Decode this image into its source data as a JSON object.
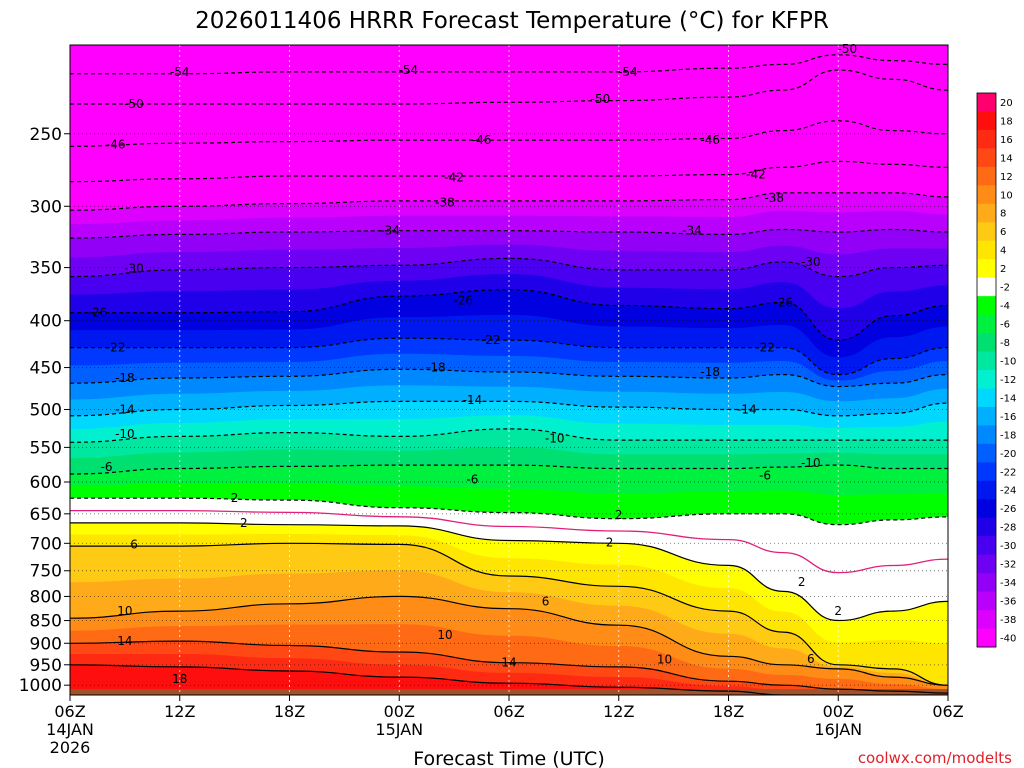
{
  "title": "2026011406 HRRR Forecast Temperature (°C) for KFPR",
  "credit": "coolwx.com/modelts",
  "chart_data": {
    "type": "heatmap",
    "title": "2026011406 HRRR Forecast Temperature (°C) for KFPR",
    "xlabel": "Forecast Time (UTC)",
    "ylabel": "",
    "x_range_hours": [
      0,
      48
    ],
    "x_ticks": [
      {
        "hour": 0,
        "lines": [
          "06Z",
          "14JAN",
          "2026"
        ]
      },
      {
        "hour": 6,
        "lines": [
          "12Z"
        ]
      },
      {
        "hour": 12,
        "lines": [
          "18Z"
        ]
      },
      {
        "hour": 18,
        "lines": [
          "00Z",
          "15JAN"
        ]
      },
      {
        "hour": 24,
        "lines": [
          "06Z"
        ]
      },
      {
        "hour": 30,
        "lines": [
          "12Z"
        ]
      },
      {
        "hour": 36,
        "lines": [
          "18Z"
        ]
      },
      {
        "hour": 42,
        "lines": [
          "00Z",
          "16JAN"
        ]
      },
      {
        "hour": 48,
        "lines": [
          "06Z"
        ]
      }
    ],
    "y_scale": "log-pressure (hPa, top 200, bottom 1025)",
    "y_range": [
      200,
      1025
    ],
    "y_ticks": [
      250,
      300,
      350,
      400,
      450,
      500,
      550,
      600,
      650,
      700,
      750,
      800,
      850,
      900,
      950,
      1000
    ],
    "grid": "dotted",
    "colorbar_levels": [
      20,
      18,
      16,
      14,
      12,
      10,
      8,
      6,
      4,
      2,
      -2,
      -4,
      -6,
      -8,
      -10,
      -12,
      -14,
      -16,
      -18,
      -20,
      -22,
      -24,
      -26,
      -28,
      -30,
      -32,
      -34,
      -36,
      -38,
      -40
    ],
    "colorbar_colors": [
      "#ff006e",
      "#ff0e0e",
      "#ff2a12",
      "#ff4814",
      "#ff6a14",
      "#ff8c16",
      "#ffaa18",
      "#ffca14",
      "#ffe600",
      "#ffff00",
      "#ffffff",
      "#00ff00",
      "#00f040",
      "#00e070",
      "#00e8a0",
      "#00f0d0",
      "#00d8ff",
      "#00b0ff",
      "#0088ff",
      "#0060ff",
      "#0038ff",
      "#0018f0",
      "#0000e0",
      "#2000e8",
      "#4a00f0",
      "#6e00f4",
      "#9200f8",
      "#b800fc",
      "#dc00fe",
      "#ff00ff"
    ],
    "times_hours": [
      0,
      6,
      12,
      18,
      24,
      30,
      36,
      39,
      42,
      45,
      48
    ],
    "isotherm_levels_hpa": {
      "-54": [
        215,
        215,
        214,
        214,
        214,
        214,
        212,
        210,
        205,
        208,
        210
      ],
      "-50": [
        232,
        232,
        232,
        232,
        231,
        230,
        228,
        224,
        213,
        218,
        224
      ],
      "-46": [
        258,
        256,
        255,
        254,
        254,
        254,
        253,
        248,
        242,
        248,
        250
      ],
      "-42": [
        282,
        280,
        278,
        278,
        278,
        278,
        277,
        272,
        268,
        270,
        272
      ],
      "-38": [
        303,
        300,
        298,
        296,
        296,
        296,
        295,
        290,
        290,
        290,
        293
      ],
      "-34": [
        325,
        322,
        320,
        319,
        319,
        320,
        322,
        318,
        320,
        318,
        320
      ],
      "-30": [
        358,
        352,
        350,
        348,
        342,
        352,
        352,
        345,
        358,
        350,
        348
      ],
      "-26": [
        392,
        392,
        391,
        376,
        370,
        385,
        388,
        382,
        420,
        395,
        385
      ],
      "-22": [
        428,
        428,
        428,
        418,
        420,
        428,
        428,
        428,
        458,
        440,
        428
      ],
      "-18": [
        468,
        462,
        460,
        452,
        455,
        460,
        462,
        458,
        472,
        468,
        458
      ],
      "-14": [
        508,
        500,
        495,
        490,
        490,
        497,
        500,
        500,
        508,
        505,
        492
      ],
      "-10": [
        543,
        535,
        530,
        535,
        525,
        540,
        540,
        540,
        540,
        540,
        540
      ],
      "-6": [
        588,
        580,
        577,
        575,
        575,
        580,
        580,
        578,
        575,
        580,
        580
      ],
      "-2": [
        625,
        625,
        628,
        640,
        648,
        658,
        650,
        650,
        668,
        660,
        655
      ],
      "2": [
        665,
        665,
        668,
        670,
        695,
        700,
        740,
        790,
        850,
        830,
        810
      ],
      "6": [
        705,
        705,
        700,
        702,
        760,
        780,
        830,
        875,
        950,
        960,
        1000
      ],
      "10": [
        845,
        830,
        815,
        800,
        825,
        860,
        930,
        950,
        960,
        980,
        1000
      ],
      "14": [
        900,
        895,
        905,
        920,
        945,
        955,
        990,
        1000,
        1010,
        1015,
        1020
      ],
      "18": [
        950,
        955,
        965,
        980,
        995,
        1005,
        1015,
        1025,
        1025,
        1025,
        1025
      ]
    },
    "isotherm_labels": [
      {
        "label": "-54",
        "hour": 6,
        "hpa": 214
      },
      {
        "label": "-54",
        "hour": 18.5,
        "hpa": 213
      },
      {
        "label": "-54",
        "hour": 30.5,
        "hpa": 214
      },
      {
        "label": "-50",
        "hour": 3.5,
        "hpa": 232
      },
      {
        "label": "-50",
        "hour": 29,
        "hpa": 229
      },
      {
        "label": "-50",
        "hour": 42.5,
        "hpa": 202
      },
      {
        "label": "-46",
        "hour": 2.5,
        "hpa": 257
      },
      {
        "label": "-46",
        "hour": 22.5,
        "hpa": 254
      },
      {
        "label": "-46",
        "hour": 35,
        "hpa": 254
      },
      {
        "label": "-42",
        "hour": 21,
        "hpa": 279
      },
      {
        "label": "-42",
        "hour": 37.5,
        "hpa": 277
      },
      {
        "label": "-38",
        "hour": 20.5,
        "hpa": 297
      },
      {
        "label": "-38",
        "hour": 38.5,
        "hpa": 294
      },
      {
        "label": "-34",
        "hour": 17.5,
        "hpa": 319
      },
      {
        "label": "-34",
        "hour": 34,
        "hpa": 319
      },
      {
        "label": "-30",
        "hour": 3.5,
        "hpa": 351
      },
      {
        "label": "-30",
        "hour": 40.5,
        "hpa": 345
      },
      {
        "label": "-26",
        "hour": 1.5,
        "hpa": 392
      },
      {
        "label": "-26",
        "hour": 21.5,
        "hpa": 380
      },
      {
        "label": "-26",
        "hour": 39,
        "hpa": 382
      },
      {
        "label": "-22",
        "hour": 2.5,
        "hpa": 428
      },
      {
        "label": "-22",
        "hour": 23,
        "hpa": 420
      },
      {
        "label": "-22",
        "hour": 38,
        "hpa": 428
      },
      {
        "label": "-18",
        "hour": 3,
        "hpa": 462
      },
      {
        "label": "-18",
        "hour": 20,
        "hpa": 450
      },
      {
        "label": "-18",
        "hour": 35,
        "hpa": 455
      },
      {
        "label": "-14",
        "hour": 3,
        "hpa": 500
      },
      {
        "label": "-14",
        "hour": 22,
        "hpa": 488
      },
      {
        "label": "-14",
        "hour": 37,
        "hpa": 500
      },
      {
        "label": "-10",
        "hour": 3,
        "hpa": 532
      },
      {
        "label": "-10",
        "hour": 26.5,
        "hpa": 538
      },
      {
        "label": "-10",
        "hour": 40.5,
        "hpa": 572
      },
      {
        "label": "-6",
        "hour": 2,
        "hpa": 578
      },
      {
        "label": "-6",
        "hour": 22,
        "hpa": 596
      },
      {
        "label": "-6",
        "hour": 38,
        "hpa": 590
      },
      {
        "label": "2",
        "hour": 9,
        "hpa": 625
      },
      {
        "label": "2",
        "hour": 9.5,
        "hpa": 665
      },
      {
        "label": "2",
        "hour": 30,
        "hpa": 652
      },
      {
        "label": "2",
        "hour": 29.5,
        "hpa": 699
      },
      {
        "label": "2",
        "hour": 40,
        "hpa": 772
      },
      {
        "label": "2",
        "hour": 42,
        "hpa": 830
      },
      {
        "label": "6",
        "hour": 3.5,
        "hpa": 702
      },
      {
        "label": "6",
        "hour": 26,
        "hpa": 810
      },
      {
        "label": "6",
        "hour": 40.5,
        "hpa": 936
      },
      {
        "label": "10",
        "hour": 3,
        "hpa": 830
      },
      {
        "label": "10",
        "hour": 20.5,
        "hpa": 882
      },
      {
        "label": "10",
        "hour": 32.5,
        "hpa": 937
      },
      {
        "label": "14",
        "hour": 3,
        "hpa": 895
      },
      {
        "label": "14",
        "hour": 24,
        "hpa": 945
      },
      {
        "label": "18",
        "hour": 6,
        "hpa": 985
      }
    ],
    "ground_level_hpa": 1010,
    "ground_color": "#a0522d",
    "contour_color_zero": "#e0207a"
  }
}
